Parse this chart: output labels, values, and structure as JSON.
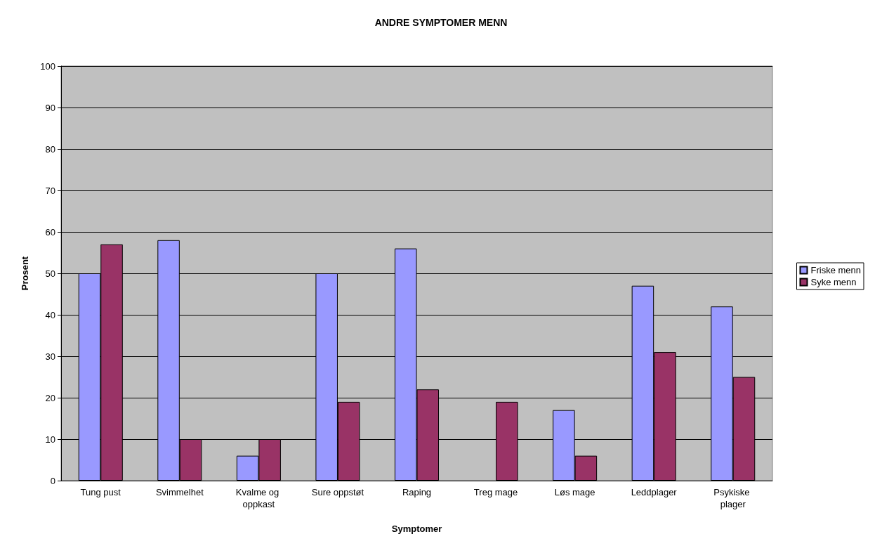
{
  "chart_data": {
    "type": "bar",
    "title": "ANDRE SYMPTOMER MENN",
    "xlabel": "Symptomer",
    "ylabel": "Prosent",
    "categories": [
      "Tung pust",
      "Svimmelhet",
      "Kvalme og oppkast",
      "Sure oppstøt",
      "Raping",
      "Treg mage",
      "Løs mage",
      "Leddplager",
      "Psykiske plager"
    ],
    "series": [
      {
        "name": "Friske menn",
        "color": "#9999ff",
        "values": [
          50,
          58,
          6,
          50,
          56,
          null,
          17,
          47,
          42
        ]
      },
      {
        "name": "Syke menn",
        "color": "#993366",
        "values": [
          57,
          10,
          10,
          19,
          22,
          19,
          6,
          31,
          25
        ]
      }
    ],
    "ylim": [
      0,
      100
    ],
    "yticks": [
      0,
      10,
      20,
      30,
      40,
      50,
      60,
      70,
      80,
      90,
      100
    ],
    "grid": "y",
    "legend": "right"
  }
}
